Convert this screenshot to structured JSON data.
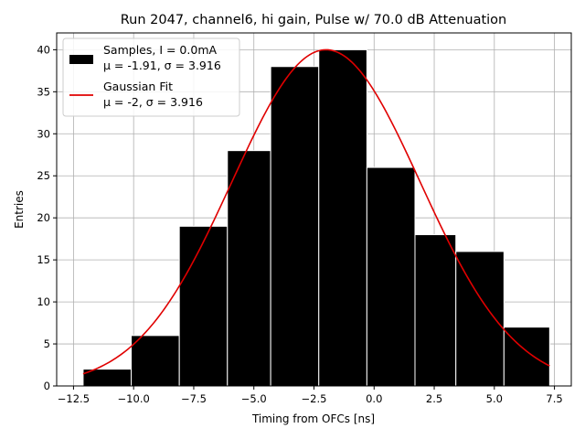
{
  "chart_data": {
    "type": "bar",
    "title": "Run 2047, channel6, hi gain, Pulse w/ 70.0 dB Attenuation",
    "xlabel": "Timing from OFCs [ns]",
    "ylabel": "Entries",
    "xlim": [
      -13.2,
      8.2
    ],
    "ylim": [
      0,
      42
    ],
    "xticks": [
      -12.5,
      -10.0,
      -7.5,
      -5.0,
      -2.5,
      0.0,
      2.5,
      5.0,
      7.5
    ],
    "xtick_labels": [
      "−12.5",
      "−10.0",
      "−7.5",
      "−5.0",
      "−2.5",
      "0.0",
      "2.5",
      "5.0",
      "7.5"
    ],
    "yticks": [
      0,
      5,
      10,
      15,
      20,
      25,
      30,
      35,
      40
    ],
    "ytick_labels": [
      "0",
      "5",
      "10",
      "15",
      "20",
      "25",
      "30",
      "35",
      "40"
    ],
    "grid": true,
    "legend_position": "top-left",
    "histogram": {
      "name": "Samples, I = 0.0mA",
      "stats": "μ = -1.91, σ = 3.916",
      "color": "#000000",
      "edgecolor": "#ffffff",
      "bin_edges": [
        -12.1,
        -10.1,
        -8.1,
        -6.1,
        -4.3,
        -2.3,
        -0.3,
        1.7,
        3.4,
        5.4,
        7.3
      ],
      "counts": [
        2,
        6,
        19,
        28,
        38,
        40,
        26,
        18,
        16,
        7
      ]
    },
    "fit": {
      "name": "Gaussian Fit",
      "stats": "μ = -2, σ = 3.916",
      "color": "#e00000",
      "mu": -2,
      "sigma": 3.916,
      "amplitude": 40,
      "x_range": [
        -12.1,
        7.3
      ]
    }
  }
}
